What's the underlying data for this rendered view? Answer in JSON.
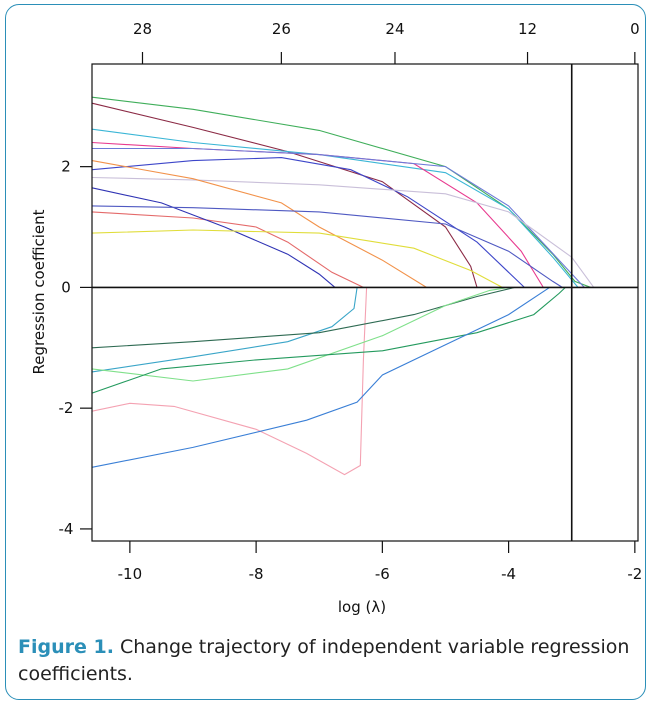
{
  "caption": {
    "label": "Figure 1.",
    "text": " Change trajectory of independent variable regression coefficients."
  },
  "chart_data": {
    "type": "line",
    "xlabel": "log (λ)",
    "ylabel": "Regression coefficient",
    "xlim": [
      -10.6,
      -1.95
    ],
    "ylim": [
      -4.2,
      3.7
    ],
    "x_ticks": [
      -10,
      -8,
      -6,
      -4,
      -2
    ],
    "y_ticks": [
      -4,
      -2,
      0,
      2
    ],
    "top_axis": {
      "ticks": [
        {
          "x": -9.8,
          "label": "28"
        },
        {
          "x": -7.6,
          "label": "26"
        },
        {
          "x": -5.8,
          "label": "24"
        },
        {
          "x": -3.7,
          "label": "12"
        },
        {
          "x": -2.0,
          "label": "0"
        }
      ]
    },
    "vline_x": -3.0,
    "hline_y": 0,
    "grid": false,
    "series": [
      {
        "color": "#3fae5a",
        "points": [
          [
            -10.6,
            3.15
          ],
          [
            -9,
            2.95
          ],
          [
            -7,
            2.6
          ],
          [
            -5,
            2.0
          ],
          [
            -4,
            1.3
          ],
          [
            -3.3,
            0.55
          ],
          [
            -2.95,
            0.1
          ],
          [
            -2.7,
            0
          ]
        ]
      },
      {
        "color": "#8b2a45",
        "points": [
          [
            -10.6,
            3.05
          ],
          [
            -9,
            2.65
          ],
          [
            -7.5,
            2.25
          ],
          [
            -6,
            1.75
          ],
          [
            -5,
            1.0
          ],
          [
            -4.6,
            0.35
          ],
          [
            -4.5,
            0
          ]
        ]
      },
      {
        "color": "#3bb6d6",
        "points": [
          [
            -10.6,
            2.62
          ],
          [
            -9,
            2.4
          ],
          [
            -7,
            2.2
          ],
          [
            -5,
            1.9
          ],
          [
            -4,
            1.3
          ],
          [
            -3.3,
            0.5
          ],
          [
            -2.9,
            0
          ]
        ]
      },
      {
        "color": "#e83a8f",
        "points": [
          [
            -10.6,
            2.4
          ],
          [
            -9,
            2.3
          ],
          [
            -7,
            2.2
          ],
          [
            -5.5,
            2.05
          ],
          [
            -4.5,
            1.4
          ],
          [
            -3.8,
            0.6
          ],
          [
            -3.45,
            0
          ]
        ]
      },
      {
        "color": "#6c7ad8",
        "points": [
          [
            -10.6,
            2.3
          ],
          [
            -9,
            2.3
          ],
          [
            -7,
            2.2
          ],
          [
            -5,
            2.0
          ],
          [
            -4,
            1.35
          ],
          [
            -3.2,
            0.45
          ],
          [
            -2.8,
            0
          ]
        ]
      },
      {
        "color": "#3d46c9",
        "points": [
          [
            -10.6,
            1.95
          ],
          [
            -9,
            2.1
          ],
          [
            -7.6,
            2.15
          ],
          [
            -6.5,
            1.95
          ],
          [
            -5.6,
            1.5
          ],
          [
            -4.5,
            0.75
          ],
          [
            -3.75,
            0
          ]
        ]
      },
      {
        "color": "#c9bfd9",
        "points": [
          [
            -10.6,
            1.82
          ],
          [
            -9,
            1.78
          ],
          [
            -7,
            1.7
          ],
          [
            -5,
            1.55
          ],
          [
            -4,
            1.25
          ],
          [
            -3,
            0.5
          ],
          [
            -2.65,
            0
          ]
        ]
      },
      {
        "color": "#f2924a",
        "points": [
          [
            -10.6,
            2.1
          ],
          [
            -9,
            1.8
          ],
          [
            -7.6,
            1.4
          ],
          [
            -7,
            1.0
          ],
          [
            -6,
            0.45
          ],
          [
            -5.3,
            0
          ]
        ]
      },
      {
        "color": "#e46a6a",
        "points": [
          [
            -10.6,
            1.25
          ],
          [
            -9,
            1.15
          ],
          [
            -8,
            1.0
          ],
          [
            -7.5,
            0.75
          ],
          [
            -6.8,
            0.25
          ],
          [
            -6.3,
            0
          ]
        ]
      },
      {
        "color": "#2f33b4",
        "points": [
          [
            -10.6,
            1.65
          ],
          [
            -9.5,
            1.4
          ],
          [
            -8.5,
            1.0
          ],
          [
            -7.5,
            0.55
          ],
          [
            -7,
            0.22
          ],
          [
            -6.75,
            0
          ]
        ]
      },
      {
        "color": "#4f59c2",
        "points": [
          [
            -10.6,
            1.35
          ],
          [
            -9,
            1.32
          ],
          [
            -7,
            1.25
          ],
          [
            -5,
            1.05
          ],
          [
            -4,
            0.6
          ],
          [
            -3.3,
            0.1
          ],
          [
            -3.15,
            0
          ]
        ]
      },
      {
        "color": "#e0dd3a",
        "points": [
          [
            -10.6,
            0.9
          ],
          [
            -9,
            0.95
          ],
          [
            -7,
            0.9
          ],
          [
            -5.5,
            0.65
          ],
          [
            -4.6,
            0.28
          ],
          [
            -4.1,
            0
          ]
        ]
      },
      {
        "color": "#f4a2b2",
        "points": [
          [
            -10.6,
            -2.05
          ],
          [
            -10,
            -1.92
          ],
          [
            -9.3,
            -1.97
          ],
          [
            -8,
            -2.35
          ],
          [
            -7.2,
            -2.75
          ],
          [
            -6.6,
            -3.1
          ],
          [
            -6.35,
            -2.95
          ],
          [
            -6.3,
            -1.2
          ],
          [
            -6.25,
            0
          ]
        ]
      },
      {
        "color": "#3aa5c8",
        "points": [
          [
            -10.6,
            -1.4
          ],
          [
            -9,
            -1.15
          ],
          [
            -7.5,
            -0.9
          ],
          [
            -6.8,
            -0.65
          ],
          [
            -6.45,
            -0.35
          ],
          [
            -6.4,
            0
          ]
        ]
      },
      {
        "color": "#2e6a52",
        "points": [
          [
            -10.6,
            -1.0
          ],
          [
            -9,
            -0.9
          ],
          [
            -7,
            -0.75
          ],
          [
            -5.5,
            -0.45
          ],
          [
            -4.5,
            -0.15
          ],
          [
            -3.9,
            0
          ]
        ]
      },
      {
        "color": "#7fe08a",
        "points": [
          [
            -10.6,
            -1.35
          ],
          [
            -9,
            -1.55
          ],
          [
            -7.5,
            -1.35
          ],
          [
            -6,
            -0.8
          ],
          [
            -5,
            -0.3
          ],
          [
            -4.3,
            -0.05
          ],
          [
            -4.0,
            0
          ]
        ]
      },
      {
        "color": "#249a5e",
        "points": [
          [
            -10.6,
            -1.75
          ],
          [
            -9.5,
            -1.35
          ],
          [
            -8,
            -1.2
          ],
          [
            -6,
            -1.05
          ],
          [
            -4.5,
            -0.75
          ],
          [
            -3.6,
            -0.45
          ],
          [
            -3.2,
            -0.1
          ],
          [
            -3.1,
            0
          ]
        ]
      },
      {
        "color": "#3a7fd6",
        "points": [
          [
            -10.6,
            -2.98
          ],
          [
            -9,
            -2.65
          ],
          [
            -7.2,
            -2.2
          ],
          [
            -6.4,
            -1.9
          ],
          [
            -6,
            -1.45
          ],
          [
            -5,
            -0.95
          ],
          [
            -4,
            -0.45
          ],
          [
            -3.35,
            0
          ]
        ]
      }
    ]
  }
}
